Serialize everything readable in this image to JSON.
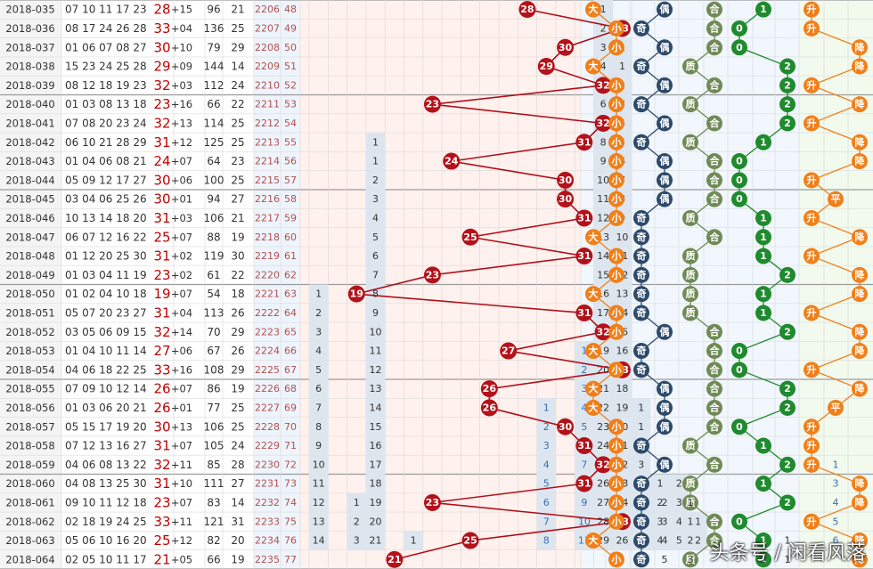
{
  "chart_data": {
    "type": "table",
    "rows": [
      {
        "period": "2018-035",
        "nums": "07 10 11 17 23",
        "r": "28",
        "d": "+15",
        "s1": "96",
        "s2": "21",
        "c1": "2206",
        "c2": "48",
        "red": 28,
        "sz": "大",
        "oe": "偶",
        "pc": "合",
        "ch": "1",
        "tr": "升"
      },
      {
        "period": "2018-036",
        "nums": "08 17 24 26 28",
        "r": "33",
        "d": "+04",
        "s1": "136",
        "s2": "25",
        "c1": "2207",
        "c2": "49",
        "red": 33,
        "sz": "小",
        "oe": "奇",
        "pc": "合",
        "ch": "0",
        "tr": "升"
      },
      {
        "period": "2018-037",
        "nums": "01 06 07 08 27",
        "r": "30",
        "d": "+10",
        "s1": "79",
        "s2": "29",
        "c1": "2208",
        "c2": "50",
        "red": 30,
        "sz": "小",
        "oe": "偶",
        "pc": "合",
        "ch": "0",
        "tr": "降"
      },
      {
        "period": "2018-038",
        "nums": "15 23 24 25 28",
        "r": "29",
        "d": "+09",
        "s1": "144",
        "s2": "14",
        "c1": "2209",
        "c2": "51",
        "red": 29,
        "sz": "大",
        "oe": "奇",
        "pc": "质",
        "ch": "2",
        "tr": "降"
      },
      {
        "period": "2018-039",
        "nums": "08 12 18 19 23",
        "r": "32",
        "d": "+03",
        "s1": "112",
        "s2": "24",
        "c1": "2210",
        "c2": "52",
        "red": 32,
        "sz": "小",
        "oe": "偶",
        "pc": "合",
        "ch": "2",
        "tr": "升"
      },
      {
        "period": "2018-040",
        "nums": "01 03 08 13 18",
        "r": "23",
        "d": "+16",
        "s1": "66",
        "s2": "22",
        "c1": "2211",
        "c2": "53",
        "red": 23,
        "sz": "小",
        "oe": "奇",
        "pc": "质",
        "ch": "2",
        "tr": "降"
      },
      {
        "period": "2018-041",
        "nums": "07 08 20 23 24",
        "r": "32",
        "d": "+13",
        "s1": "114",
        "s2": "25",
        "c1": "2212",
        "c2": "54",
        "red": 32,
        "sz": "小",
        "oe": "偶",
        "pc": "合",
        "ch": "2",
        "tr": "升"
      },
      {
        "period": "2018-042",
        "nums": "06 10 21 28 29",
        "r": "31",
        "d": "+12",
        "s1": "125",
        "s2": "25",
        "c1": "2213",
        "c2": "55",
        "red": 31,
        "sz": "小",
        "oe": "奇",
        "pc": "质",
        "ch": "1",
        "tr": "降"
      },
      {
        "period": "2018-043",
        "nums": "01 04 06 08 21",
        "r": "24",
        "d": "+07",
        "s1": "64",
        "s2": "23",
        "c1": "2214",
        "c2": "56",
        "red": 24,
        "sz": "小",
        "oe": "偶",
        "pc": "合",
        "ch": "0",
        "tr": "降"
      },
      {
        "period": "2018-044",
        "nums": "05 09 12 17 27",
        "r": "30",
        "d": "+06",
        "s1": "100",
        "s2": "25",
        "c1": "2215",
        "c2": "57",
        "red": 30,
        "sz": "小",
        "oe": "偶",
        "pc": "合",
        "ch": "0",
        "tr": "升"
      },
      {
        "period": "2018-045",
        "nums": "03 04 06 25 26",
        "r": "30",
        "d": "+01",
        "s1": "94",
        "s2": "27",
        "c1": "2216",
        "c2": "58",
        "red": 30,
        "sz": "小",
        "oe": "偶",
        "pc": "合",
        "ch": "0",
        "tr": "平"
      },
      {
        "period": "2018-046",
        "nums": "10 13 14 18 20",
        "r": "31",
        "d": "+03",
        "s1": "106",
        "s2": "21",
        "c1": "2217",
        "c2": "59",
        "red": 31,
        "sz": "小",
        "oe": "奇",
        "pc": "质",
        "ch": "1",
        "tr": "升"
      },
      {
        "period": "2018-047",
        "nums": "06 07 12 16 22",
        "r": "25",
        "d": "+07",
        "s1": "88",
        "s2": "19",
        "c1": "2218",
        "c2": "60",
        "red": 25,
        "sz": "大",
        "oe": "奇",
        "pc": "合",
        "ch": "1",
        "tr": "降"
      },
      {
        "period": "2018-048",
        "nums": "01 12 20 25 30",
        "r": "31",
        "d": "+02",
        "s1": "119",
        "s2": "30",
        "c1": "2219",
        "c2": "61",
        "red": 31,
        "sz": "小",
        "oe": "奇",
        "pc": "质",
        "ch": "1",
        "tr": "升"
      },
      {
        "period": "2018-049",
        "nums": "01 03 04 11 19",
        "r": "23",
        "d": "+02",
        "s1": "61",
        "s2": "22",
        "c1": "2220",
        "c2": "62",
        "red": 23,
        "sz": "小",
        "oe": "奇",
        "pc": "质",
        "ch": "2",
        "tr": "降"
      },
      {
        "period": "2018-050",
        "nums": "01 02 04 10 18",
        "r": "19",
        "d": "+07",
        "s1": "54",
        "s2": "18",
        "c1": "2221",
        "c2": "63",
        "red": 19,
        "sz": "大",
        "oe": "奇",
        "pc": "质",
        "ch": "1",
        "tr": "降"
      },
      {
        "period": "2018-051",
        "nums": "05 07 20 23 27",
        "r": "31",
        "d": "+04",
        "s1": "113",
        "s2": "26",
        "c1": "2222",
        "c2": "64",
        "red": 31,
        "sz": "小",
        "oe": "奇",
        "pc": "质",
        "ch": "1",
        "tr": "升"
      },
      {
        "period": "2018-052",
        "nums": "03 05 06 09 15",
        "r": "32",
        "d": "+14",
        "s1": "70",
        "s2": "29",
        "c1": "2223",
        "c2": "65",
        "red": 32,
        "sz": "小",
        "oe": "偶",
        "pc": "合",
        "ch": "2",
        "tr": "降"
      },
      {
        "period": "2018-053",
        "nums": "01 04 10 11 14",
        "r": "27",
        "d": "+06",
        "s1": "67",
        "s2": "26",
        "c1": "2224",
        "c2": "66",
        "red": 27,
        "sz": "大",
        "oe": "奇",
        "pc": "合",
        "ch": "0",
        "tr": "降"
      },
      {
        "period": "2018-054",
        "nums": "04 06 18 22 25",
        "r": "33",
        "d": "+16",
        "s1": "108",
        "s2": "29",
        "c1": "2225",
        "c2": "67",
        "red": 33,
        "sz": "小",
        "oe": "奇",
        "pc": "合",
        "ch": "0",
        "tr": "升"
      },
      {
        "period": "2018-055",
        "nums": "07 09 10 12 14",
        "r": "26",
        "d": "+07",
        "s1": "86",
        "s2": "19",
        "c1": "2226",
        "c2": "68",
        "red": 26,
        "sz": "大",
        "oe": "偶",
        "pc": "合",
        "ch": "2",
        "tr": "降"
      },
      {
        "period": "2018-056",
        "nums": "01 03 06 20 21",
        "r": "26",
        "d": "+01",
        "s1": "77",
        "s2": "25",
        "c1": "2227",
        "c2": "69",
        "red": 26,
        "sz": "大",
        "oe": "偶",
        "pc": "合",
        "ch": "2",
        "tr": "平"
      },
      {
        "period": "2018-057",
        "nums": "05 15 17 19 20",
        "r": "30",
        "d": "+13",
        "s1": "106",
        "s2": "25",
        "c1": "2228",
        "c2": "70",
        "red": 30,
        "sz": "小",
        "oe": "偶",
        "pc": "合",
        "ch": "0",
        "tr": "升"
      },
      {
        "period": "2018-058",
        "nums": "07 12 13 16 27",
        "r": "31",
        "d": "+07",
        "s1": "105",
        "s2": "24",
        "c1": "2229",
        "c2": "71",
        "red": 31,
        "sz": "小",
        "oe": "奇",
        "pc": "质",
        "ch": "1",
        "tr": "升"
      },
      {
        "period": "2018-059",
        "nums": "04 06 08 13 22",
        "r": "32",
        "d": "+11",
        "s1": "85",
        "s2": "28",
        "c1": "2230",
        "c2": "72",
        "red": 32,
        "sz": "小",
        "oe": "偶",
        "pc": "合",
        "ch": "2",
        "tr": "升"
      },
      {
        "period": "2018-060",
        "nums": "04 08 13 25 30",
        "r": "31",
        "d": "+10",
        "s1": "111",
        "s2": "27",
        "c1": "2231",
        "c2": "73",
        "red": 31,
        "sz": "小",
        "oe": "奇",
        "pc": "质",
        "ch": "1",
        "tr": "降"
      },
      {
        "period": "2018-061",
        "nums": "09 10 11 12 18",
        "r": "23",
        "d": "+07",
        "s1": "83",
        "s2": "14",
        "c1": "2232",
        "c2": "74",
        "red": 23,
        "sz": "小",
        "oe": "奇",
        "pc": "质",
        "ch": "2",
        "tr": "降"
      },
      {
        "period": "2018-062",
        "nums": "02 18 19 24 25",
        "r": "33",
        "d": "+11",
        "s1": "121",
        "s2": "31",
        "c1": "2233",
        "c2": "75",
        "red": 33,
        "sz": "小",
        "oe": "奇",
        "pc": "合",
        "ch": "0",
        "tr": "升"
      },
      {
        "period": "2018-063",
        "nums": "05 06 10 16 20",
        "r": "25",
        "d": "+12",
        "s1": "82",
        "s2": "20",
        "c1": "2234",
        "c2": "76",
        "red": 25,
        "sz": "大",
        "oe": "奇",
        "pc": "合",
        "ch": "1",
        "tr": "降"
      },
      {
        "period": "2018-064",
        "nums": "02 05 10 11 17",
        "r": "21",
        "d": "+05",
        "s1": "66",
        "s2": "19",
        "c1": "2235",
        "c2": "77",
        "red": 21,
        "sz": "小",
        "oe": "奇",
        "pc": "质",
        "ch": "1",
        "tr": "降"
      }
    ],
    "omission": [
      {
        "row": 0,
        "values": [
          "1"
        ],
        "cols": [
          15
        ]
      },
      {
        "row": 1,
        "values": [
          "2"
        ],
        "cols": [
          15
        ]
      },
      {
        "row": 2,
        "values": [
          "3",
          "1"
        ],
        "cols": [
          15,
          16
        ]
      },
      {
        "row": 3,
        "values": [
          "4",
          "1"
        ],
        "cols": [
          15,
          16
        ]
      },
      {
        "row": 4,
        "values": [
          "5",
          "2"
        ],
        "cols": [
          15,
          16
        ]
      },
      {
        "row": 5,
        "values": [
          "6",
          "3"
        ],
        "cols": [
          15,
          16
        ]
      },
      {
        "row": 6,
        "values": [
          "7",
          "4"
        ],
        "cols": [
          15,
          16
        ]
      },
      {
        "row": 7,
        "values": [
          "1",
          "8",
          "5"
        ],
        "cols": [
          3,
          15,
          16
        ]
      },
      {
        "row": 8,
        "values": [
          "1",
          "9",
          "6"
        ],
        "cols": [
          3,
          15,
          16
        ]
      },
      {
        "row": 9,
        "values": [
          "2",
          "10",
          "7"
        ],
        "cols": [
          3,
          15,
          16
        ]
      },
      {
        "row": 10,
        "values": [
          "3",
          "11",
          "8"
        ],
        "cols": [
          3,
          15,
          16
        ]
      },
      {
        "row": 11,
        "values": [
          "4",
          "12",
          "9"
        ],
        "cols": [
          3,
          15,
          16
        ]
      },
      {
        "row": 12,
        "values": [
          "5",
          "13",
          "10"
        ],
        "cols": [
          3,
          15,
          16
        ]
      },
      {
        "row": 13,
        "values": [
          "6",
          "14",
          "11"
        ],
        "cols": [
          3,
          15,
          16
        ]
      },
      {
        "row": 14,
        "values": [
          "7",
          "15",
          "12"
        ],
        "cols": [
          3,
          15,
          16
        ]
      },
      {
        "row": 15,
        "values": [
          "1",
          "8",
          "16",
          "13"
        ],
        "cols": [
          0,
          3,
          15,
          16
        ]
      },
      {
        "row": 16,
        "values": [
          "2",
          "9",
          "17",
          "14"
        ],
        "cols": [
          0,
          3,
          15,
          16
        ]
      },
      {
        "row": 17,
        "values": [
          "3",
          "10",
          "18",
          "15"
        ],
        "cols": [
          0,
          3,
          15,
          16
        ]
      },
      {
        "row": 18,
        "values": [
          "4",
          "11",
          "1",
          "19",
          "16"
        ],
        "cols": [
          0,
          3,
          14,
          15,
          16
        ]
      },
      {
        "row": 19,
        "values": [
          "5",
          "12",
          "2",
          "20",
          "17"
        ],
        "cols": [
          0,
          3,
          14,
          15,
          16
        ]
      },
      {
        "row": 20,
        "values": [
          "6",
          "13",
          "3",
          "21",
          "18"
        ],
        "cols": [
          0,
          3,
          14,
          15,
          16
        ]
      },
      {
        "row": 21,
        "values": [
          "7",
          "14",
          "1",
          "4",
          "22",
          "19",
          "1"
        ],
        "cols": [
          0,
          3,
          12,
          14,
          15,
          16,
          17
        ]
      },
      {
        "row": 22,
        "values": [
          "8",
          "15",
          "2",
          "5",
          "23",
          "20",
          "1"
        ],
        "cols": [
          0,
          3,
          12,
          14,
          15,
          16,
          17
        ]
      },
      {
        "row": 23,
        "values": [
          "9",
          "16",
          "3",
          "6",
          "24",
          "21",
          "2"
        ],
        "cols": [
          0,
          3,
          12,
          14,
          15,
          16,
          17
        ]
      },
      {
        "row": 24,
        "values": [
          "10",
          "17",
          "4",
          "7",
          "25",
          "22",
          "3"
        ],
        "cols": [
          0,
          3,
          12,
          14,
          15,
          16,
          17
        ]
      },
      {
        "row": 25,
        "values": [
          "11",
          "18",
          "5",
          "8",
          "26",
          "23",
          "4",
          "1",
          "2"
        ],
        "cols": [
          0,
          3,
          12,
          14,
          15,
          16,
          17,
          18,
          19
        ]
      },
      {
        "row": 26,
        "values": [
          "12",
          "1",
          "19",
          "6",
          "9",
          "27",
          "24",
          "5",
          "2",
          "3"
        ],
        "cols": [
          0,
          2,
          3,
          12,
          14,
          15,
          16,
          17,
          18,
          19
        ]
      },
      {
        "row": 27,
        "values": [
          "13",
          "2",
          "20",
          "7",
          "10",
          "28",
          "25",
          "6",
          "3",
          "4",
          "1"
        ],
        "cols": [
          0,
          2,
          3,
          12,
          14,
          15,
          16,
          17,
          18,
          19,
          20
        ]
      },
      {
        "row": 28,
        "values": [
          "14",
          "3",
          "21",
          "1",
          "8",
          "11",
          "29",
          "26",
          "7",
          "4",
          "5",
          "2"
        ],
        "cols": [
          0,
          2,
          3,
          5,
          12,
          14,
          15,
          16,
          17,
          18,
          19,
          20
        ]
      }
    ],
    "oe_counts": [
      {
        "row": 26,
        "values": [
          "2",
          "1"
        ]
      },
      {
        "row": 27,
        "values": [
          "3",
          "1"
        ]
      },
      {
        "row": 28,
        "values": [
          "4",
          "2"
        ]
      },
      {
        "row": 29,
        "values": [
          "5",
          "3"
        ]
      }
    ],
    "ch_counts": [
      {
        "row": 28,
        "values": [
          "1"
        ]
      },
      {
        "row": 29,
        "values": [
          "1",
          "2"
        ]
      }
    ],
    "tr_counts": [
      {
        "row": 24,
        "values": [
          "1"
        ]
      },
      {
        "row": 25,
        "values": [
          "3"
        ]
      },
      {
        "row": 26,
        "values": [
          "4"
        ]
      },
      {
        "row": 27,
        "values": [
          "5"
        ]
      },
      {
        "row": 28,
        "values": [
          "6"
        ]
      }
    ],
    "watermark": "头条号 / 闲看风落"
  }
}
